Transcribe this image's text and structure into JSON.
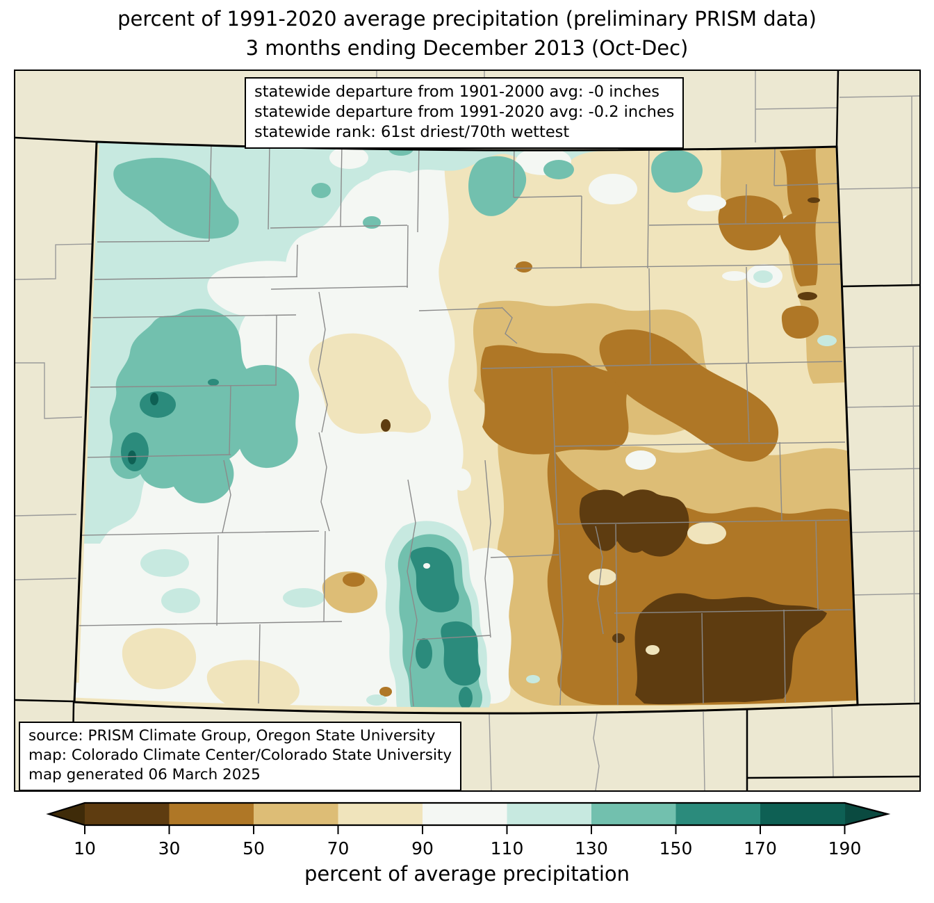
{
  "title": {
    "line1": "percent of 1991-2020 average precipitation (preliminary PRISM data)",
    "line2": "3 months ending December 2013 (Oct-Dec)"
  },
  "stats_box": {
    "line1": "statewide departure from 1901-2000 avg: -0 inches",
    "line2": "statewide departure from 1991-2020 avg: -0.2 inches",
    "line3": "statewide rank: 61st driest/70th wettest"
  },
  "source_box": {
    "line1": "source: PRISM Climate Group, Oregon State University",
    "line2": "map: Colorado Climate Center/Colorado State University",
    "line3": "map generated 06 March 2025"
  },
  "colorbar": {
    "caption": "percent of average precipitation",
    "tick_labels": [
      "10",
      "30",
      "50",
      "70",
      "90",
      "110",
      "130",
      "150",
      "170",
      "190"
    ],
    "segment_colors": [
      "#5E3C10",
      "#AF7726",
      "#DDBD76",
      "#F0E4BC",
      "#F4F7F3",
      "#C7E9E0",
      "#72C0AE",
      "#2B8B7C",
      "#0E6054"
    ],
    "under_color": "#3F2B09",
    "over_color": "#0A4A40"
  },
  "map": {
    "region": "Colorado",
    "background_color": "#ECE8D2",
    "county_line_color": "#8A8A8A",
    "neighbor_line_color": "#9A9A9A",
    "state_border_color": "#000000",
    "palette": [
      {
        "range": "<10",
        "color": "#3F2B09"
      },
      {
        "range": "10-30",
        "color": "#5E3C10"
      },
      {
        "range": "30-50",
        "color": "#AF7726"
      },
      {
        "range": "50-70",
        "color": "#DDBD76"
      },
      {
        "range": "70-90",
        "color": "#F0E4BC"
      },
      {
        "range": "90-110",
        "color": "#F4F7F3"
      },
      {
        "range": "110-130",
        "color": "#C7E9E0"
      },
      {
        "range": "130-150",
        "color": "#72C0AE"
      },
      {
        "range": "150-170",
        "color": "#2B8B7C"
      },
      {
        "range": "170-190",
        "color": "#0E6054"
      },
      {
        "range": ">190",
        "color": "#0A4A40"
      }
    ]
  }
}
